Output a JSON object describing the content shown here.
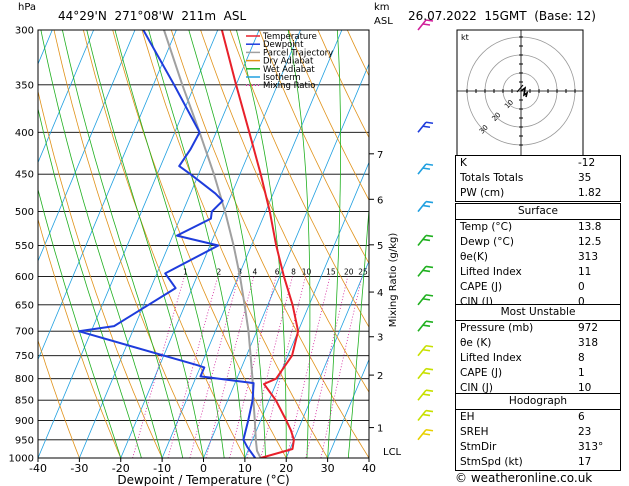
{
  "header": {
    "hpa_label": "hPa",
    "location": "44°29'N  271°08'W  211m  ASL",
    "km_label": "km",
    "asl_label": "ASL",
    "datetime": "26.07.2022  15GMT  (Base: 12)"
  },
  "chart_data": {
    "type": "skew-t",
    "xlabel": "Dewpoint / Temperature (°C)",
    "ylabel_right": "Mixing Ratio (g/kg)",
    "x_ticks": [
      -40,
      -30,
      -20,
      -10,
      0,
      10,
      20,
      30,
      40
    ],
    "pressure_ticks": [
      300,
      350,
      400,
      450,
      500,
      550,
      600,
      650,
      700,
      750,
      800,
      850,
      900,
      950,
      1000
    ],
    "km_ticks": [
      {
        "p": 918,
        "label": "1"
      },
      {
        "p": 792,
        "label": "2"
      },
      {
        "p": 711,
        "label": "3"
      },
      {
        "p": 627,
        "label": "4"
      },
      {
        "p": 549,
        "label": "5"
      },
      {
        "p": 483,
        "label": "6"
      },
      {
        "p": 425,
        "label": "7"
      }
    ],
    "lcl": {
      "p": 980,
      "label": "LCL"
    },
    "mixing_ratio_labels": [
      "1",
      "2",
      "3",
      "4",
      "6",
      "8",
      "10",
      "15",
      "20",
      "25"
    ],
    "legend": [
      {
        "name": "Temperature",
        "color": "#e8202a"
      },
      {
        "name": "Dewpoint",
        "color": "#1e3cdc"
      },
      {
        "name": "Parcel Trajectory",
        "color": "#a0a0a0"
      },
      {
        "name": "Dry Adiabat",
        "color": "#e0921a"
      },
      {
        "name": "Wet Adiabat",
        "color": "#20b020"
      },
      {
        "name": "Isotherm",
        "color": "#20a0e0"
      },
      {
        "name": "Mixing Ratio",
        "color": "#d0209a"
      }
    ],
    "temperature": [
      {
        "p": 1000,
        "t": 13.8
      },
      {
        "p": 975,
        "t": 20.6
      },
      {
        "p": 950,
        "t": 20.0
      },
      {
        "p": 925,
        "t": 18.3
      },
      {
        "p": 900,
        "t": 16.2
      },
      {
        "p": 850,
        "t": 11.6
      },
      {
        "p": 812,
        "t": 7.1
      },
      {
        "p": 800,
        "t": 9.5
      },
      {
        "p": 750,
        "t": 11.0
      },
      {
        "p": 700,
        "t": 10.0
      },
      {
        "p": 650,
        "t": 6.0
      },
      {
        "p": 600,
        "t": 1.0
      },
      {
        "p": 550,
        "t": -4.0
      },
      {
        "p": 500,
        "t": -9.0
      },
      {
        "p": 450,
        "t": -15.0
      },
      {
        "p": 400,
        "t": -22.0
      },
      {
        "p": 350,
        "t": -30.0
      },
      {
        "p": 300,
        "t": -39.0
      }
    ],
    "dewpoint": [
      {
        "p": 1000,
        "t": 12.5
      },
      {
        "p": 970,
        "t": 9.5
      },
      {
        "p": 950,
        "t": 7.8
      },
      {
        "p": 900,
        "t": 7.0
      },
      {
        "p": 850,
        "t": 6.0
      },
      {
        "p": 810,
        "t": 4.5
      },
      {
        "p": 795,
        "t": -9.0
      },
      {
        "p": 775,
        "t": -9.0
      },
      {
        "p": 770,
        "t": -11.0
      },
      {
        "p": 700,
        "t": -43.0
      },
      {
        "p": 690,
        "t": -35.0
      },
      {
        "p": 620,
        "t": -24.0
      },
      {
        "p": 595,
        "t": -28.0
      },
      {
        "p": 550,
        "t": -18.0
      },
      {
        "p": 535,
        "t": -29.0
      },
      {
        "p": 510,
        "t": -22.5
      },
      {
        "p": 500,
        "t": -23.0
      },
      {
        "p": 485,
        "t": -21.5
      },
      {
        "p": 475,
        "t": -24.0
      },
      {
        "p": 450,
        "t": -32.0
      },
      {
        "p": 440,
        "t": -35.5
      },
      {
        "p": 420,
        "t": -34.5
      },
      {
        "p": 400,
        "t": -34.0
      },
      {
        "p": 350,
        "t": -45.0
      },
      {
        "p": 300,
        "t": -58.0
      }
    ],
    "parcel": [
      {
        "p": 1000,
        "t": 13.8
      },
      {
        "p": 980,
        "t": 12.2
      },
      {
        "p": 950,
        "t": 10.8
      },
      {
        "p": 900,
        "t": 8.6
      },
      {
        "p": 850,
        "t": 6.2
      },
      {
        "p": 800,
        "t": 3.8
      },
      {
        "p": 750,
        "t": 1.0
      },
      {
        "p": 700,
        "t": -2.0
      },
      {
        "p": 650,
        "t": -5.6
      },
      {
        "p": 600,
        "t": -9.6
      },
      {
        "p": 550,
        "t": -14.3
      },
      {
        "p": 500,
        "t": -19.8
      },
      {
        "p": 450,
        "t": -26.3
      },
      {
        "p": 400,
        "t": -34.0
      },
      {
        "p": 350,
        "t": -43.0
      },
      {
        "p": 300,
        "t": -53.0
      }
    ]
  },
  "hodograph": {
    "label": "kt",
    "ring_labels": [
      "10",
      "20",
      "30"
    ]
  },
  "table": {
    "rows_top": [
      {
        "label": "K",
        "value": "-12"
      },
      {
        "label": "Totals Totals",
        "value": "35"
      },
      {
        "label": "PW (cm)",
        "value": "1.82"
      }
    ],
    "surface": {
      "title": "Surface",
      "rows": [
        {
          "label": "Temp (°C)",
          "value": "13.8"
        },
        {
          "label": "Dewp (°C)",
          "value": "12.5"
        },
        {
          "label": "θe(K)",
          "value": "313"
        },
        {
          "label": "Lifted Index",
          "value": "11"
        },
        {
          "label": "CAPE (J)",
          "value": "0"
        },
        {
          "label": "CIN (J)",
          "value": "0"
        }
      ]
    },
    "most_unstable": {
      "title": "Most Unstable",
      "rows": [
        {
          "label": "Pressure (mb)",
          "value": "972"
        },
        {
          "label": "θe (K)",
          "value": "318"
        },
        {
          "label": "Lifted Index",
          "value": "8"
        },
        {
          "label": "CAPE (J)",
          "value": "1"
        },
        {
          "label": "CIN (J)",
          "value": "10"
        }
      ]
    },
    "hodograph": {
      "title": "Hodograph",
      "rows": [
        {
          "label": "EH",
          "value": "6"
        },
        {
          "label": "SREH",
          "value": "23"
        },
        {
          "label": "StmDir",
          "value": "313°"
        },
        {
          "label": "StmSpd (kt)",
          "value": "17"
        }
      ]
    }
  },
  "footer": {
    "copyright": "© weatheronline.co.uk"
  }
}
